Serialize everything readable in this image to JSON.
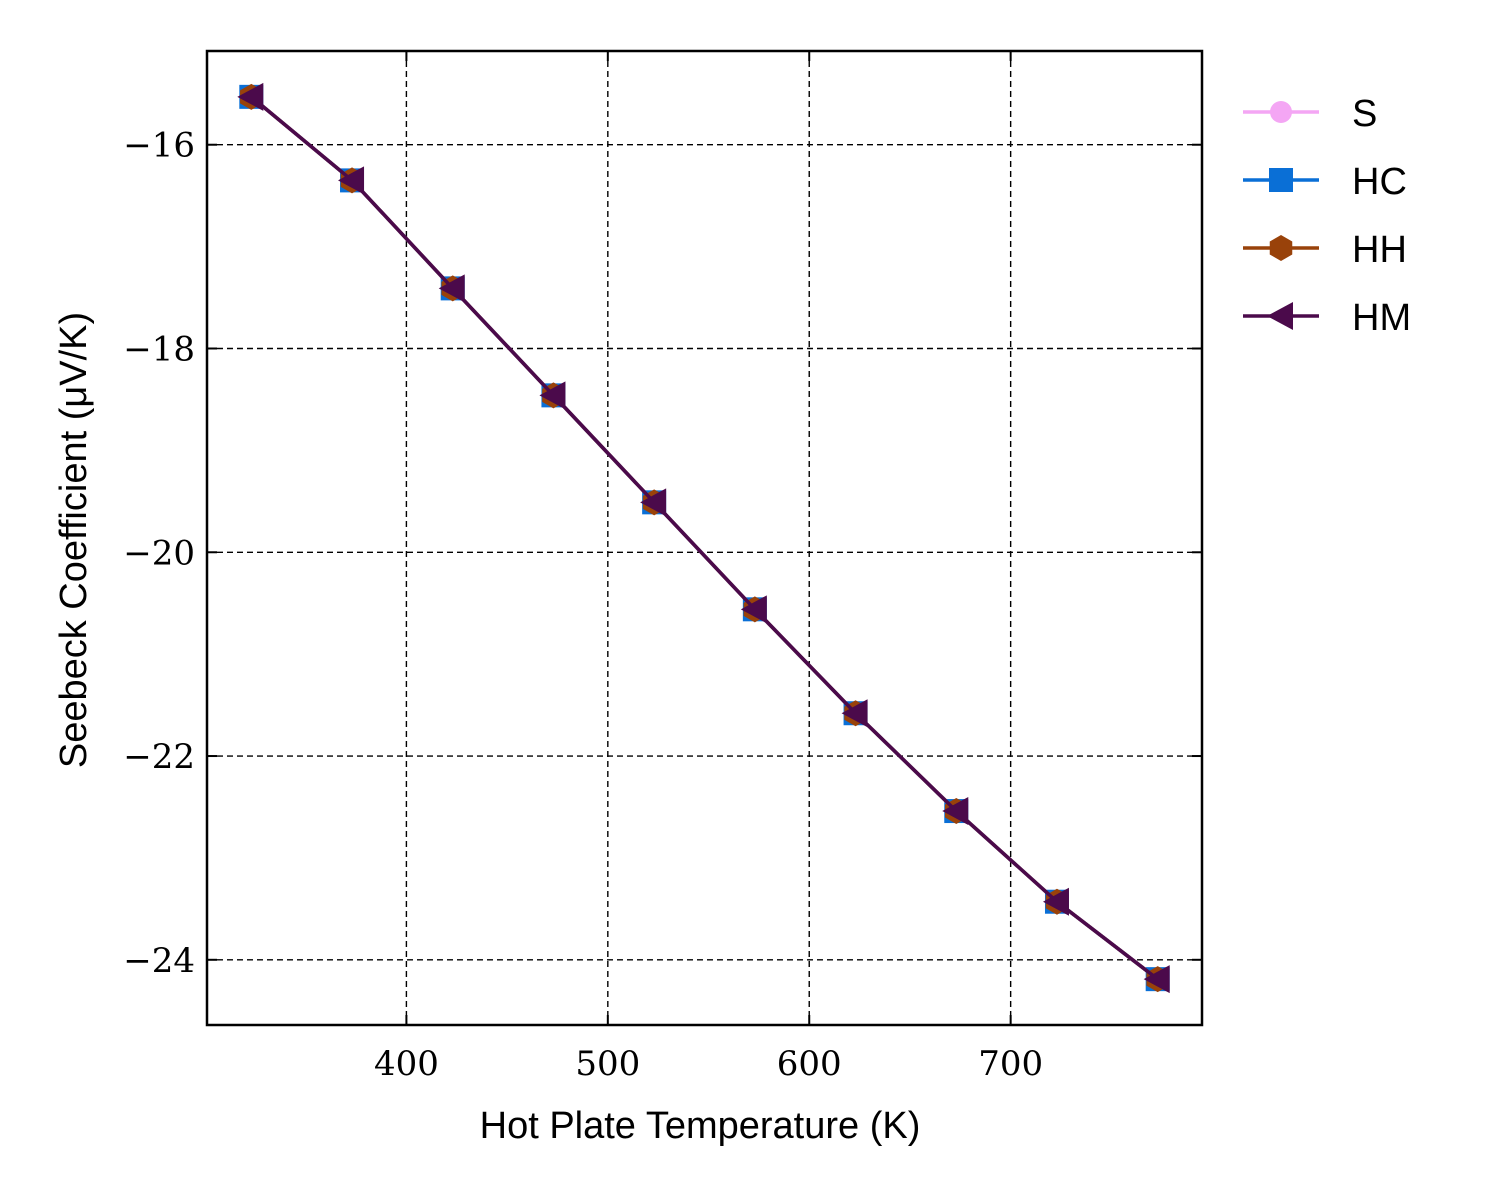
{
  "chart_data": {
    "type": "line",
    "title": "",
    "xlabel": "Hot Plate Temperature (K)",
    "ylabel": "Seebeck Coefficient (μV/K)",
    "xlim": [
      301,
      795
    ],
    "ylim": [
      -24.64,
      -15.08
    ],
    "xticks": [
      400,
      500,
      600,
      700
    ],
    "xtick_labels": [
      "400",
      "500",
      "600",
      "700"
    ],
    "yticks": [
      -24,
      -22,
      -20,
      -18,
      -16
    ],
    "ytick_labels": [
      "−24",
      "−22",
      "−20",
      "−18",
      "−16"
    ],
    "grid": true,
    "legend_position": "outside-top-right",
    "x": [
      323,
      373,
      423,
      473,
      523,
      573,
      623,
      673,
      723,
      773
    ],
    "series": [
      {
        "name": "S",
        "color": "#f4a6f4",
        "marker": "circle",
        "values": [
          -15.53,
          -16.35,
          -17.41,
          -18.46,
          -19.51,
          -20.56,
          -21.58,
          -22.54,
          -23.43,
          -24.19
        ]
      },
      {
        "name": "HC",
        "color": "#0a6fd6",
        "marker": "square",
        "values": [
          -15.53,
          -16.35,
          -17.41,
          -18.46,
          -19.51,
          -20.56,
          -21.58,
          -22.54,
          -23.43,
          -24.19
        ]
      },
      {
        "name": "HH",
        "color": "#99420a",
        "marker": "hexagon",
        "values": [
          -15.53,
          -16.35,
          -17.41,
          -18.46,
          -19.51,
          -20.56,
          -21.58,
          -22.54,
          -23.43,
          -24.19
        ]
      },
      {
        "name": "HM",
        "color": "#4b0a4b",
        "marker": "triangle-left",
        "values": [
          -15.53,
          -16.35,
          -17.41,
          -18.46,
          -19.51,
          -20.56,
          -21.58,
          -22.54,
          -23.43,
          -24.19
        ]
      }
    ]
  }
}
